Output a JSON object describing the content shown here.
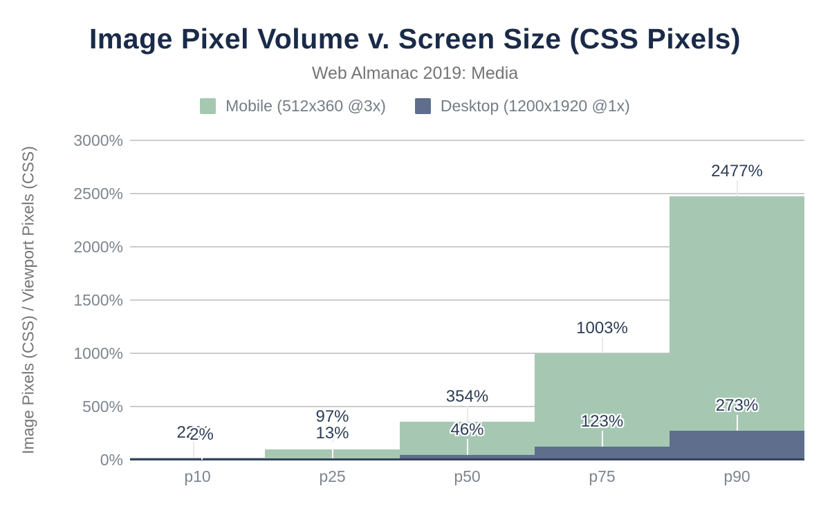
{
  "title": "Image Pixel Volume v. Screen Size (CSS Pixels)",
  "subtitle": "Web Almanac 2019: Media",
  "colors": {
    "title_text": "#1a2b49",
    "subtitle_text": "#757575",
    "legend_text": "#737d87",
    "axis_text": "#7d858f",
    "value_label_text": "#2c3c57",
    "gridline": "#cccccc",
    "axis_baseline": "#35435f",
    "mobile_series": "#a6c8b3",
    "desktop_series": "#5f6e8c"
  },
  "legend": {
    "items": [
      {
        "label": "Mobile (512x360 @3x)",
        "color": "#a6c8b3"
      },
      {
        "label": "Desktop (1200x1920 @1x)",
        "color": "#5f6e8c"
      }
    ]
  },
  "chart_data": {
    "type": "bar",
    "categories": [
      "p10",
      "p25",
      "p50",
      "p75",
      "p90"
    ],
    "series": [
      {
        "name": "Mobile (512x360 @3x)",
        "color": "#a6c8b3",
        "values": [
          22,
          97,
          354,
          1003,
          2477
        ],
        "labels": [
          "22%",
          "97%",
          "354%",
          "1003%",
          "2477%"
        ]
      },
      {
        "name": "Desktop (1200x1920 @1x)",
        "color": "#5f6e8c",
        "values": [
          2,
          13,
          46,
          123,
          273
        ],
        "labels": [
          "2%",
          "13%",
          "46%",
          "123%",
          "273%"
        ]
      }
    ],
    "title": "Image Pixel Volume v. Screen Size (CSS Pixels)",
    "subtitle": "Web Almanac 2019: Media",
    "xlabel": "",
    "ylabel": "Image Pixels (CSS) / Viewport Pixels (CSS)",
    "ylim": [
      0,
      3000
    ],
    "ytick_step": 500,
    "ytick_labels": [
      "0%",
      "500%",
      "1000%",
      "1500%",
      "2000%",
      "2500%",
      "3000%"
    ],
    "grid": true,
    "legend_position": "top",
    "bar_gap": 0,
    "unit": "%"
  }
}
